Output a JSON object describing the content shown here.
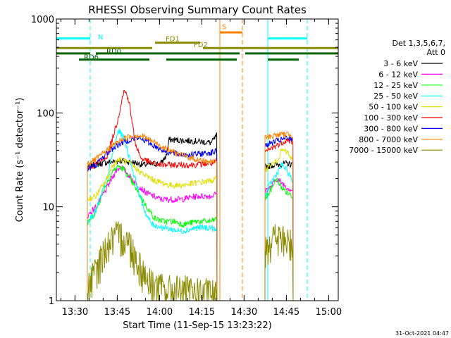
{
  "chart_data": {
    "type": "line",
    "title": "RHESSI Observing Summary Count Rates",
    "xlabel": "Start Time (11-Sep-15 13:23:22)",
    "ylabel": "Count Rate (s⁻¹ detector⁻¹)",
    "yscale": "log",
    "xlim_minutes": [
      0,
      100
    ],
    "ylim": [
      1,
      1000
    ],
    "x_ticks": [
      {
        "label": "13:30",
        "t": 6.6
      },
      {
        "label": "13:45",
        "t": 21.6
      },
      {
        "label": "14:00",
        "t": 36.6
      },
      {
        "label": "14:15",
        "t": 51.6
      },
      {
        "label": "14:30",
        "t": 66.6
      },
      {
        "label": "14:45",
        "t": 81.6
      },
      {
        "label": "15:00",
        "t": 96.6
      }
    ],
    "y_ticks": [
      {
        "label": "1",
        "v": 1
      },
      {
        "label": "10",
        "v": 10
      },
      {
        "label": "100",
        "v": 100
      },
      {
        "label": "1000",
        "v": 1000
      }
    ],
    "legend_title": [
      "Det 1,3,5,6,7,",
      "Att 0"
    ],
    "series": [
      {
        "name": "3 - 6 keV",
        "color": "#000000",
        "points": [
          [
            11,
            27
          ],
          [
            16,
            29
          ],
          [
            19,
            30
          ],
          [
            23,
            31
          ],
          [
            27,
            30
          ],
          [
            31,
            28
          ],
          [
            37,
            29
          ],
          [
            39,
            35
          ],
          [
            40,
            52
          ],
          [
            50,
            50
          ],
          [
            55,
            48
          ],
          [
            57,
            58
          ],
          [
            null,
            null
          ],
          [
            74,
            27
          ],
          [
            78,
            28
          ],
          [
            82,
            29
          ],
          [
            84,
            28
          ]
        ]
      },
      {
        "name": "6 - 12 keV",
        "color": "#ff00ff",
        "points": [
          [
            11,
            8
          ],
          [
            14,
            10
          ],
          [
            18,
            16
          ],
          [
            21,
            24
          ],
          [
            23,
            27
          ],
          [
            25,
            23
          ],
          [
            28,
            18
          ],
          [
            32,
            14
          ],
          [
            37,
            12
          ],
          [
            44,
            12
          ],
          [
            50,
            13
          ],
          [
            55,
            13
          ],
          [
            57,
            14
          ],
          [
            null,
            null
          ],
          [
            74,
            15
          ],
          [
            76,
            16
          ],
          [
            78,
            20
          ],
          [
            80,
            18
          ],
          [
            82,
            16
          ],
          [
            84,
            15
          ]
        ]
      },
      {
        "name": "12 - 25 keV",
        "color": "#00ff00",
        "points": [
          [
            11,
            6.5
          ],
          [
            14,
            9
          ],
          [
            17,
            16
          ],
          [
            20,
            24
          ],
          [
            22,
            27
          ],
          [
            24,
            25
          ],
          [
            28,
            16
          ],
          [
            32,
            10
          ],
          [
            35,
            7.5
          ],
          [
            38,
            7
          ],
          [
            42,
            7
          ],
          [
            45,
            6.5
          ],
          [
            50,
            7
          ],
          [
            55,
            7
          ],
          [
            57,
            7.5
          ],
          [
            null,
            null
          ],
          [
            74,
            12
          ],
          [
            76,
            15
          ],
          [
            78,
            20
          ],
          [
            80,
            16
          ],
          [
            82,
            14
          ],
          [
            84,
            13
          ]
        ]
      },
      {
        "name": "25 - 50 keV",
        "color": "#00ffff",
        "points": [
          [
            11,
            7
          ],
          [
            14,
            9
          ],
          [
            18,
            20
          ],
          [
            20,
            38
          ],
          [
            22,
            65
          ],
          [
            24,
            55
          ],
          [
            27,
            25
          ],
          [
            30,
            12
          ],
          [
            32,
            8
          ],
          [
            34,
            6.5
          ],
          [
            38,
            6
          ],
          [
            44,
            5.5
          ],
          [
            50,
            6
          ],
          [
            55,
            6
          ],
          [
            57,
            5.5
          ],
          [
            null,
            null
          ],
          [
            74,
            13
          ],
          [
            76,
            18
          ],
          [
            78,
            22
          ],
          [
            80,
            28
          ],
          [
            82,
            24
          ],
          [
            84,
            18
          ]
        ]
      },
      {
        "name": "50 - 100 keV",
        "color": "#e0e000",
        "points": [
          [
            11,
            12
          ],
          [
            14,
            13
          ],
          [
            18,
            20
          ],
          [
            20,
            28
          ],
          [
            22,
            32
          ],
          [
            25,
            30
          ],
          [
            28,
            26
          ],
          [
            31,
            22
          ],
          [
            35,
            19
          ],
          [
            40,
            17
          ],
          [
            45,
            17
          ],
          [
            50,
            18
          ],
          [
            55,
            19
          ],
          [
            57,
            20
          ],
          [
            null,
            null
          ],
          [
            74,
            25
          ],
          [
            76,
            28
          ],
          [
            78,
            30
          ],
          [
            80,
            40
          ],
          [
            82,
            38
          ],
          [
            84,
            30
          ]
        ]
      },
      {
        "name": "100 - 300 keV",
        "color": "#ff0000",
        "points": [
          [
            11,
            26
          ],
          [
            14,
            28
          ],
          [
            18,
            35
          ],
          [
            20,
            55
          ],
          [
            22,
            90
          ],
          [
            23,
            130
          ],
          [
            24,
            170
          ],
          [
            25,
            160
          ],
          [
            26,
            120
          ],
          [
            27,
            75
          ],
          [
            28,
            48
          ],
          [
            30,
            33
          ],
          [
            34,
            29
          ],
          [
            37,
            28
          ],
          [
            40,
            28
          ],
          [
            48,
            28
          ],
          [
            55,
            29
          ],
          [
            57,
            30
          ],
          [
            null,
            null
          ],
          [
            74,
            38
          ],
          [
            78,
            45
          ],
          [
            82,
            52
          ],
          [
            84,
            48
          ]
        ]
      },
      {
        "name": "300 - 800 keV",
        "color": "#0000ff",
        "points": [
          [
            11,
            25
          ],
          [
            14,
            28
          ],
          [
            17,
            35
          ],
          [
            20,
            42
          ],
          [
            23,
            48
          ],
          [
            26,
            52
          ],
          [
            29,
            54
          ],
          [
            31,
            52
          ],
          [
            34,
            46
          ],
          [
            37,
            41
          ],
          [
            40,
            38
          ],
          [
            44,
            36
          ],
          [
            48,
            36
          ],
          [
            52,
            37
          ],
          [
            55,
            38
          ],
          [
            57,
            39
          ],
          [
            null,
            null
          ],
          [
            74,
            45
          ],
          [
            78,
            50
          ],
          [
            82,
            54
          ],
          [
            84,
            52
          ]
        ]
      },
      {
        "name": "800 - 7000 keV",
        "color": "#ff8000",
        "points": [
          [
            11,
            29
          ],
          [
            14,
            32
          ],
          [
            17,
            38
          ],
          [
            20,
            45
          ],
          [
            23,
            52
          ],
          [
            26,
            56
          ],
          [
            29,
            58
          ],
          [
            31,
            56
          ],
          [
            34,
            50
          ],
          [
            37,
            45
          ],
          [
            40,
            40
          ],
          [
            44,
            36
          ],
          [
            48,
            33
          ],
          [
            52,
            31
          ],
          [
            55,
            30
          ],
          [
            57,
            31
          ],
          [
            null,
            null
          ],
          [
            74,
            55
          ],
          [
            78,
            58
          ],
          [
            82,
            60
          ],
          [
            84,
            58
          ]
        ]
      },
      {
        "name": "7000 - 15000 keV",
        "color": "#8b8b00",
        "points": [
          [
            11,
            1.3
          ],
          [
            13,
            1.8
          ],
          [
            15,
            2.5
          ],
          [
            17,
            3.5
          ],
          [
            19,
            4.2
          ],
          [
            21,
            4.8
          ],
          [
            23,
            5
          ],
          [
            25,
            4.5
          ],
          [
            27,
            3.6
          ],
          [
            29,
            2.6
          ],
          [
            31,
            2
          ],
          [
            33,
            1.6
          ],
          [
            36,
            1.4
          ],
          [
            40,
            1.3
          ],
          [
            45,
            1.3
          ],
          [
            50,
            1.2
          ],
          [
            55,
            1.2
          ],
          [
            57,
            1.1
          ],
          [
            null,
            null
          ],
          [
            74,
            4
          ],
          [
            76,
            4.5
          ],
          [
            78,
            4.8
          ],
          [
            80,
            4.5
          ],
          [
            82,
            4.2
          ],
          [
            84,
            4
          ]
        ]
      }
    ],
    "state_bars": [
      {
        "label": "N",
        "color": "#00ffff",
        "level": 620,
        "segments": [
          [
            -1,
            12
          ],
          [
            75,
            89
          ]
        ]
      },
      {
        "label": "S",
        "color": "#ff8000",
        "level": 720,
        "segments": [
          [
            58,
            66
          ]
        ]
      },
      {
        "label": "FD1",
        "color": "#8b8b00",
        "level": 560,
        "segments": [
          [
            35,
            51
          ]
        ]
      },
      {
        "label": "FD2",
        "color": "#8b8b00",
        "level": 490,
        "segments": [
          [
            -1,
            34
          ],
          [
            52,
            100
          ]
        ]
      },
      {
        "label": "RD0",
        "color": "#006400",
        "level": 430,
        "segments": [
          [
            -1,
            12
          ],
          [
            14,
            65
          ],
          [
            67,
            100
          ]
        ]
      },
      {
        "label": "RD6",
        "color": "#006400",
        "level": 370,
        "segments": [
          [
            8,
            33
          ],
          [
            39,
            64
          ],
          [
            75,
            86
          ]
        ]
      }
    ],
    "boundaries": [
      {
        "t": 0,
        "style": "solid",
        "color": "#00ffff",
        "name": "night-boundary"
      },
      {
        "t": 12,
        "style": "dashed",
        "color": "#00ffff",
        "name": "night-boundary"
      },
      {
        "t": 58,
        "style": "solid",
        "color": "#ff8000",
        "name": "saa-boundary"
      },
      {
        "t": 66,
        "style": "dashed",
        "color": "#ff8000",
        "name": "saa-boundary"
      },
      {
        "t": 75,
        "style": "solid",
        "color": "#00ffff",
        "name": "night-boundary"
      },
      {
        "t": 89,
        "style": "dashed",
        "color": "#00ffff",
        "name": "night-boundary"
      }
    ],
    "annotation": "31-Oct-2021 04:47"
  }
}
